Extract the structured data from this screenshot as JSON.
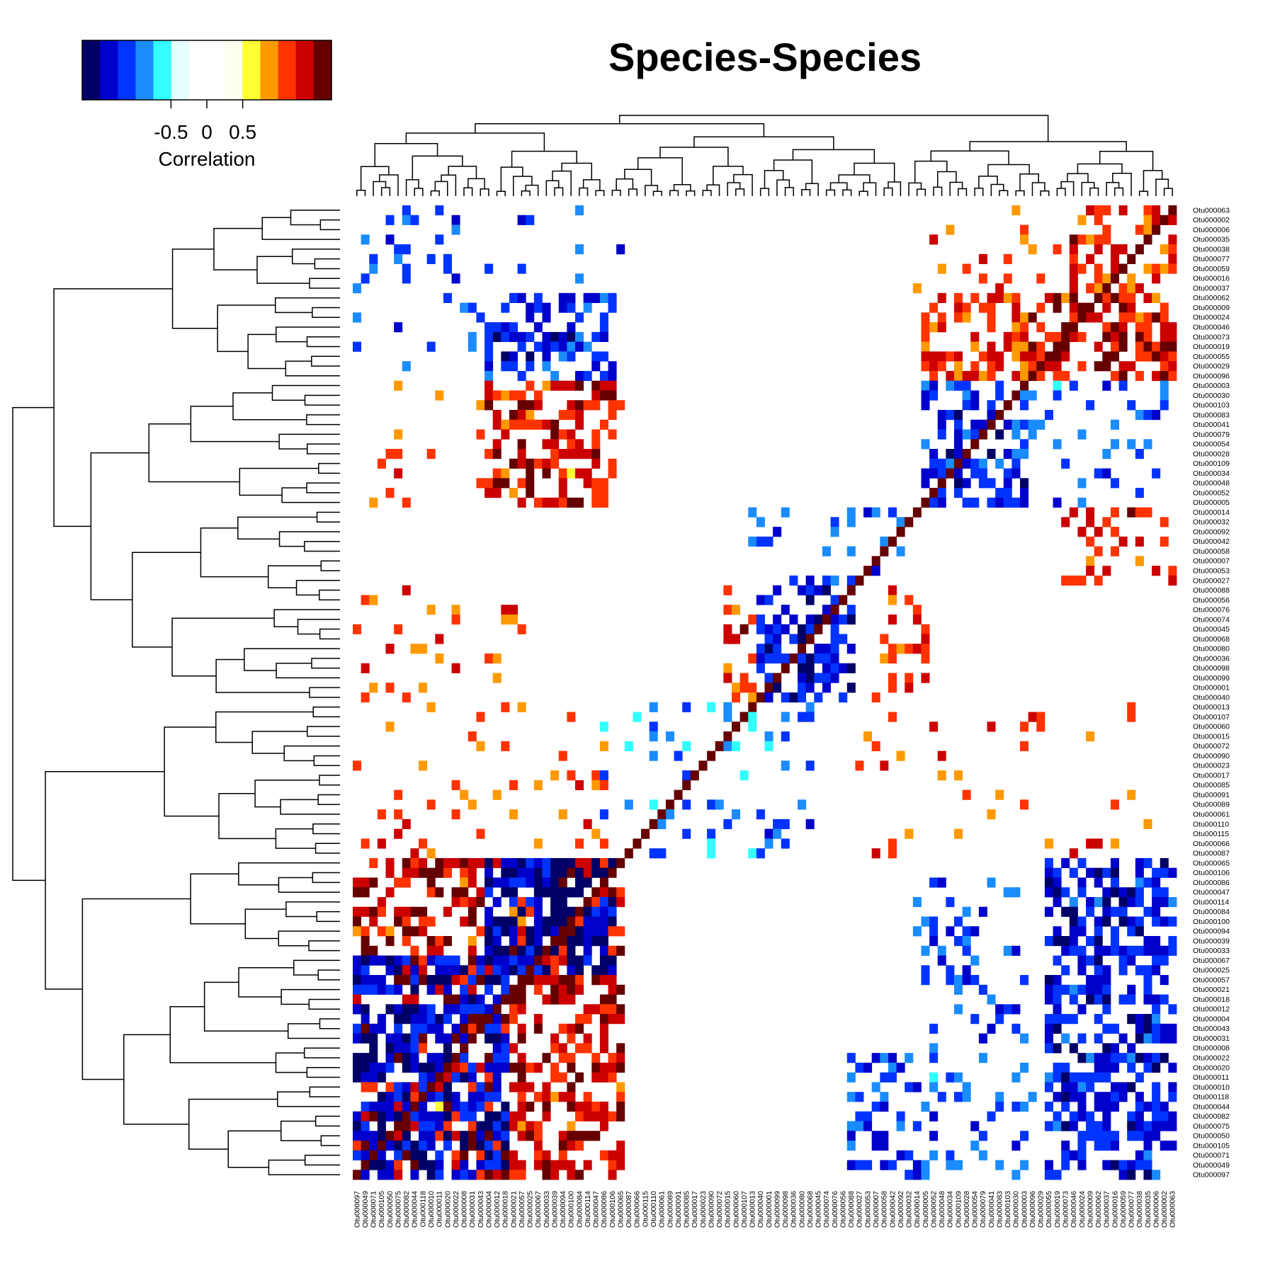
{
  "chart_data": {
    "type": "heatmap",
    "title": "Species-Species",
    "colorbar": {
      "label": "Correlation",
      "ticks": [
        "-0.5",
        "0",
        "0.5"
      ],
      "tick_values": [
        -0.5,
        0,
        0.5
      ],
      "range": [
        -1,
        1
      ],
      "colors": [
        "#000066",
        "#0000cc",
        "#0033ff",
        "#1a8cff",
        "#33ffff",
        "#e6ffff",
        "#ffffff",
        "#ffffff",
        "#fffff0",
        "#ffff33",
        "#ff9900",
        "#ff3300",
        "#cc0000",
        "#660000"
      ]
    },
    "rows": [
      "Otu000063",
      "Otu000002",
      "Otu000006",
      "Otu000035",
      "Otu000038",
      "Otu000077",
      "Otu000059",
      "Otu000016",
      "Otu000037",
      "Otu000062",
      "Otu000009",
      "Otu000024",
      "Otu000046",
      "Otu000073",
      "Otu000019",
      "Otu000055",
      "Otu000029",
      "Otu000096",
      "Otu000003",
      "Otu000030",
      "Otu000103",
      "Otu000083",
      "Otu000041",
      "Otu000079",
      "Otu000054",
      "Otu000028",
      "Otu000109",
      "Otu000034",
      "Otu000048",
      "Otu000052",
      "Otu000005",
      "Otu000014",
      "Otu000032",
      "Otu000092",
      "Otu000042",
      "Otu000058",
      "Otu000007",
      "Otu000053",
      "Otu000027",
      "Otu000088",
      "Otu000056",
      "Otu000076",
      "Otu000074",
      "Otu000045",
      "Otu000068",
      "Otu000080",
      "Otu000036",
      "Otu000098",
      "Otu000099",
      "Otu000001",
      "Otu000040",
      "Otu000013",
      "Otu000107",
      "Otu000060",
      "Otu000015",
      "Otu000072",
      "Otu000090",
      "Otu000023",
      "Otu000017",
      "Otu000085",
      "Otu000091",
      "Otu000089",
      "Otu000061",
      "Otu000110",
      "Otu000115",
      "Otu000066",
      "Otu000087",
      "Otu000065",
      "Otu000106",
      "Otu000086",
      "Otu000047",
      "Otu000114",
      "Otu000084",
      "Otu000100",
      "Otu000094",
      "Otu000039",
      "Otu000033",
      "Otu000067",
      "Otu000025",
      "Otu000057",
      "Otu000021",
      "Otu000018",
      "Otu000012",
      "Otu000004",
      "Otu000043",
      "Otu000031",
      "Otu000008",
      "Otu000022",
      "Otu000020",
      "Otu000011",
      "Otu000010",
      "Otu000118",
      "Otu000044",
      "Otu000082",
      "Otu000075",
      "Otu000050",
      "Otu000105",
      "Otu000071",
      "Otu000049",
      "Otu000097"
    ],
    "columns": [
      "Otu000097",
      "Otu000049",
      "Otu000071",
      "Otu000105",
      "Otu000050",
      "Otu000075",
      "Otu000082",
      "Otu000044",
      "Otu000118",
      "Otu000010",
      "Otu000011",
      "Otu000020",
      "Otu000022",
      "Otu000008",
      "Otu000031",
      "Otu000043",
      "Otu000004",
      "Otu000012",
      "Otu000018",
      "Otu000021",
      "Otu000057",
      "Otu000025",
      "Otu000067",
      "Otu000033",
      "Otu000039",
      "Otu000094",
      "Otu000100",
      "Otu000084",
      "Otu000114",
      "Otu000047",
      "Otu000086",
      "Otu000106",
      "Otu000065",
      "Otu000087",
      "Otu000066",
      "Otu000115",
      "Otu000110",
      "Otu000061",
      "Otu000089",
      "Otu000091",
      "Otu000085",
      "Otu000017",
      "Otu000023",
      "Otu000090",
      "Otu000072",
      "Otu000015",
      "Otu000060",
      "Otu000107",
      "Otu000013",
      "Otu000040",
      "Otu000001",
      "Otu000099",
      "Otu000098",
      "Otu000036",
      "Otu000080",
      "Otu000068",
      "Otu000045",
      "Otu000074",
      "Otu000076",
      "Otu000056",
      "Otu000088",
      "Otu000027",
      "Otu000053",
      "Otu000007",
      "Otu000058",
      "Otu000042",
      "Otu000092",
      "Otu000032",
      "Otu000014",
      "Otu000005",
      "Otu000052",
      "Otu000048",
      "Otu000034",
      "Otu000109",
      "Otu000028",
      "Otu000054",
      "Otu000079",
      "Otu000041",
      "Otu000083",
      "Otu000103",
      "Otu000030",
      "Otu000003",
      "Otu000096",
      "Otu000029",
      "Otu000055",
      "Otu000019",
      "Otu000073",
      "Otu000046",
      "Otu000024",
      "Otu000009",
      "Otu000062",
      "Otu000037",
      "Otu000016",
      "Otu000059",
      "Otu000077",
      "Otu000038",
      "Otu000035",
      "Otu000006",
      "Otu000002",
      "Otu000063"
    ],
    "blocks": [
      {
        "r": [
          0,
          17
        ],
        "c": [
          0,
          32
        ],
        "v": -0.6,
        "d": 0.06
      },
      {
        "r": [
          0,
          17
        ],
        "c": [
          68,
          99
        ],
        "v": 0.6,
        "d": 0.06
      },
      {
        "r": [
          18,
          30
        ],
        "c": [
          0,
          32
        ],
        "v": 0.6,
        "d": 0.06
      },
      {
        "r": [
          18,
          30
        ],
        "c": [
          68,
          99
        ],
        "v": -0.6,
        "d": 0.06
      },
      {
        "r": [
          67,
          99
        ],
        "c": [
          0,
          32
        ],
        "v": 0.6,
        "d": 0.06
      },
      {
        "r": [
          67,
          99
        ],
        "c": [
          68,
          99
        ],
        "v": -0.6,
        "d": 0.06
      },
      {
        "r": [
          0,
          8
        ],
        "c": [
          87,
          99
        ],
        "v": 0.7,
        "d": 0.5
      },
      {
        "r": [
          0,
          8
        ],
        "c": [
          0,
          12
        ],
        "v": -0.6,
        "d": 0.18
      },
      {
        "r": [
          9,
          17
        ],
        "c": [
          82,
          99
        ],
        "v": 0.75,
        "d": 0.55
      },
      {
        "r": [
          9,
          17
        ],
        "c": [
          16,
          31
        ],
        "v": -0.7,
        "d": 0.5
      },
      {
        "r": [
          18,
          30
        ],
        "c": [
          16,
          31
        ],
        "v": 0.75,
        "d": 0.5
      },
      {
        "r": [
          18,
          30
        ],
        "c": [
          69,
          81
        ],
        "v": -0.7,
        "d": 0.55
      },
      {
        "r": [
          18,
          30
        ],
        "c": [
          82,
          99
        ],
        "v": -0.6,
        "d": 0.1
      },
      {
        "r": [
          9,
          17
        ],
        "c": [
          69,
          81
        ],
        "v": 0.7,
        "d": 0.5
      },
      {
        "r": [
          31,
          38
        ],
        "c": [
          86,
          99
        ],
        "v": 0.7,
        "d": 0.35
      },
      {
        "r": [
          31,
          38
        ],
        "c": [
          48,
          66
        ],
        "v": -0.6,
        "d": 0.2
      },
      {
        "r": [
          39,
          50
        ],
        "c": [
          49,
          60
        ],
        "v": -0.75,
        "d": 0.5
      },
      {
        "r": [
          39,
          50
        ],
        "c": [
          45,
          48
        ],
        "v": 0.7,
        "d": 0.35
      },
      {
        "r": [
          39,
          50
        ],
        "c": [
          63,
          69
        ],
        "v": 0.7,
        "d": 0.35
      },
      {
        "r": [
          39,
          50
        ],
        "c": [
          0,
          20
        ],
        "v": 0.6,
        "d": 0.12
      },
      {
        "r": [
          51,
          66
        ],
        "c": [
          30,
          55
        ],
        "v": -0.55,
        "d": 0.15
      },
      {
        "r": [
          51,
          66
        ],
        "c": [
          0,
          30
        ],
        "v": 0.6,
        "d": 0.07
      },
      {
        "r": [
          51,
          66
        ],
        "c": [
          60,
          99
        ],
        "v": 0.6,
        "d": 0.07
      },
      {
        "r": [
          67,
          99
        ],
        "c": [
          0,
          32
        ],
        "v": 0.8,
        "d": 0.45
      },
      {
        "r": [
          67,
          78
        ],
        "c": [
          16,
          31
        ],
        "v": -0.85,
        "d": 0.65
      },
      {
        "r": [
          77,
          99
        ],
        "c": [
          0,
          18
        ],
        "v": -0.8,
        "d": 0.6
      },
      {
        "r": [
          67,
          99
        ],
        "c": [
          69,
          81
        ],
        "v": -0.6,
        "d": 0.15
      },
      {
        "r": [
          67,
          99
        ],
        "c": [
          84,
          99
        ],
        "v": -0.75,
        "d": 0.5
      },
      {
        "r": [
          87,
          99
        ],
        "c": [
          60,
          68
        ],
        "v": -0.65,
        "d": 0.35
      }
    ],
    "diagonal": 1.0,
    "threshold": 0.3
  }
}
